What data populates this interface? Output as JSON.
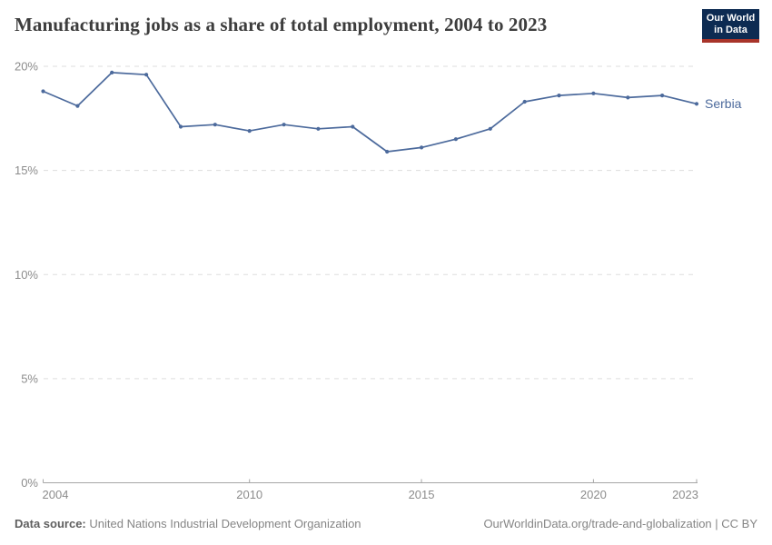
{
  "header": {
    "title": "Manufacturing jobs as a share of total employment, 2004 to 2023",
    "logo": {
      "line1": "Our World",
      "line2": "in Data"
    }
  },
  "chart_data": {
    "type": "line",
    "title": "Manufacturing jobs as a share of total employment, 2004 to 2023",
    "x": [
      2004,
      2005,
      2006,
      2007,
      2008,
      2009,
      2010,
      2011,
      2012,
      2013,
      2014,
      2015,
      2016,
      2017,
      2018,
      2019,
      2020,
      2021,
      2022,
      2023
    ],
    "series": [
      {
        "name": "Serbia",
        "color": "#4c6a9c",
        "values": [
          18.8,
          18.1,
          19.7,
          19.6,
          17.1,
          17.2,
          16.9,
          17.2,
          17.0,
          17.1,
          15.9,
          16.1,
          16.5,
          17.0,
          18.3,
          18.6,
          18.7,
          18.5,
          18.6,
          18.2
        ]
      }
    ],
    "xlabel": "",
    "ylabel": "",
    "ylim": [
      0,
      20
    ],
    "yticks": [
      0,
      5,
      10,
      15,
      20
    ],
    "ytick_labels": [
      "0%",
      "5%",
      "10%",
      "15%",
      "20%"
    ],
    "xticks": [
      2004,
      2010,
      2015,
      2020,
      2023
    ],
    "grid": "horizontal-dashed",
    "legend": "end-of-line-label"
  },
  "footer": {
    "datasource_label": "Data source:",
    "datasource": "United Nations Industrial Development Organization",
    "link": "OurWorldinData.org/trade-and-globalization | CC BY"
  },
  "colors": {
    "line": "#4c6a9c",
    "grid": "#dddddd",
    "axis": "#a6a6a6",
    "tick_label": "#8c8c8c",
    "title": "#3d3d3d",
    "footer": "#858585",
    "logo_bg": "#0d2b52",
    "logo_accent": "#a8342a"
  }
}
